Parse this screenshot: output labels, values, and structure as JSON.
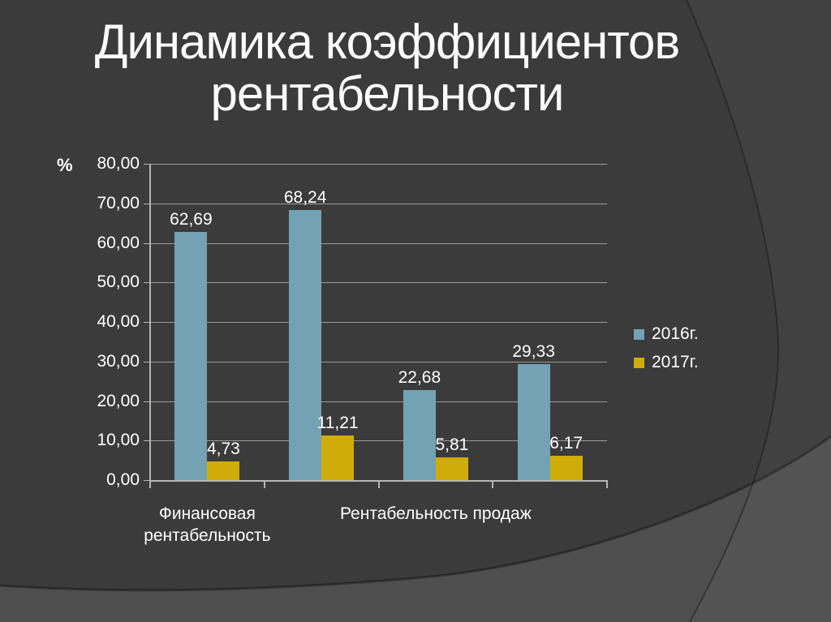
{
  "slide": {
    "title": "Динамика коэффициентов рентабельности",
    "background": {
      "base_color": "#3B3B3B",
      "sweep_color": "#4E4E4E",
      "arc_edge_color": "#2A2A2A"
    }
  },
  "chart_data": {
    "type": "bar",
    "title": "Динамика коэффициентов рентабельности",
    "unit_label": "%",
    "categories": [
      "Финансовая рентабельность",
      "",
      "Рентабельность продаж",
      ""
    ],
    "series": [
      {
        "name": "2016г.",
        "color": "#72A2B3",
        "values": [
          62.69,
          68.24,
          22.68,
          29.33
        ],
        "value_labels": [
          "62,69",
          "68,24",
          "22,68",
          "29,33"
        ]
      },
      {
        "name": "2017г.",
        "color": "#D0AC0A",
        "values": [
          4.73,
          11.21,
          5.81,
          6.17
        ],
        "value_labels": [
          "4,73",
          "11,21",
          "5,81",
          "6,17"
        ]
      }
    ],
    "ylim": [
      0,
      80
    ],
    "ytick_step": 10,
    "ytick_labels": [
      "0,00",
      "10,00",
      "20,00",
      "30,00",
      "40,00",
      "50,00",
      "60,00",
      "70,00",
      "80,00"
    ],
    "grid": true,
    "legend_position": "right-middle",
    "decimal_separator": ","
  }
}
